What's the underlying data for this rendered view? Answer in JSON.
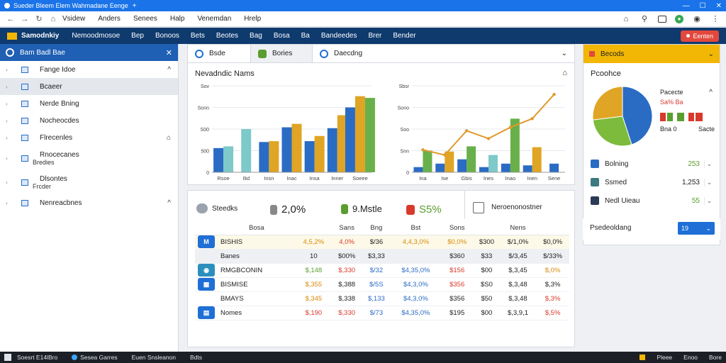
{
  "window": {
    "title": "Sueder Bleem Elem Wahmadane Eenge",
    "new_tab": "+"
  },
  "menubar": {
    "items": [
      "Vsidew",
      "Anders",
      "Senees",
      "Halp",
      "Venemdan",
      "Hrelp"
    ]
  },
  "toolbar": {
    "brand": "Samodnkiy",
    "items": [
      "Nemoodmosoe",
      "Bep",
      "Bonoos",
      "Bets",
      "Beotes",
      "Bag",
      "Bosa",
      "Ba",
      "Bandeedes",
      "Brer",
      "Bender"
    ],
    "action_label": "Eenten"
  },
  "sidebar": {
    "header": "Bam Badl Bae",
    "items": [
      {
        "label": "Fange Idoe",
        "sub": "",
        "right": "^"
      },
      {
        "label": "Bcaeer",
        "sub": "",
        "right": ""
      },
      {
        "label": "Nerde Bning",
        "sub": "",
        "right": ""
      },
      {
        "label": "Nocheocdes",
        "sub": "",
        "right": ""
      },
      {
        "label": "Flrecenles",
        "sub": "",
        "right": "⌂"
      },
      {
        "label": "Rnocecanes",
        "sub": "Bredies",
        "right": ""
      },
      {
        "label": "Dlsontes",
        "sub": "Frcder",
        "right": ""
      },
      {
        "label": "Nenreacbnes",
        "sub": "",
        "right": "^"
      }
    ]
  },
  "chart_panel": {
    "tabs": [
      {
        "label": "Bsde",
        "color": "#1f6fd6"
      },
      {
        "label": "Bories",
        "color": "#5a9e2f"
      },
      {
        "label": "Daecdng",
        "color": "#1f6fd6"
      }
    ],
    "title": "Nevadndic Nams"
  },
  "chart_data": [
    {
      "type": "bar",
      "title": "",
      "categories": [
        "Rsoe",
        "Ilid",
        "Insn",
        "Inac",
        "Insa",
        "Inner",
        "Soeee"
      ],
      "yticks": [
        "0",
        "500",
        "S00",
        "Sonn",
        "Sov"
      ],
      "ylim": [
        0,
        1000
      ],
      "series": [
        {
          "name": "",
          "color": "#2a6cc4",
          "values": [
            280,
            0,
            350,
            520,
            360,
            510,
            750
          ]
        },
        {
          "name": "",
          "color": "#7ec9c9",
          "values": [
            300,
            500,
            0,
            0,
            0,
            0,
            0
          ]
        },
        {
          "name": "",
          "color": "#e0a524",
          "values": [
            0,
            0,
            360,
            560,
            420,
            660,
            880
          ]
        },
        {
          "name": "",
          "color": "#69b04a",
          "values": [
            0,
            0,
            0,
            0,
            0,
            0,
            0
          ]
        }
      ],
      "last_bar_green": 860
    },
    {
      "type": "bar_line",
      "title": "",
      "categories": [
        "Ina",
        "Ise",
        "Gbis",
        "Ines",
        "Inao",
        "Inen",
        "Sene"
      ],
      "yticks": [
        "0",
        "Snn",
        "Soo",
        "Sono",
        "Sbsr"
      ],
      "ylim": [
        0,
        1000
      ],
      "bars": [
        {
          "color": "#2a6cc4",
          "values": [
            60,
            100,
            150,
            60,
            100,
            80,
            100
          ]
        },
        {
          "color": "#69b04a",
          "values": [
            250,
            0,
            300,
            0,
            620,
            0,
            0
          ]
        },
        {
          "color": "#e0a524",
          "values": [
            0,
            240,
            0,
            0,
            0,
            290,
            0
          ]
        },
        {
          "color": "#7ec9c9",
          "values": [
            0,
            0,
            0,
            200,
            0,
            0,
            0
          ]
        }
      ],
      "line": {
        "color": "#e09a2c",
        "values": [
          260,
          200,
          480,
          390,
          520,
          620,
          900
        ]
      }
    },
    {
      "type": "pie",
      "title": "Pcoohce",
      "slices": [
        {
          "label": "",
          "value": 45,
          "color": "#2a6cc4"
        },
        {
          "label": "",
          "value": 28,
          "color": "#7dbb3c"
        },
        {
          "label": "",
          "value": 27,
          "color": "#e0a524"
        }
      ]
    }
  ],
  "stats": {
    "items": [
      {
        "label": "Steedks",
        "value": "",
        "color": "#9aa3ad"
      },
      {
        "label": "",
        "value": "2,0%",
        "color": "#888"
      },
      {
        "label": "9.Mstle",
        "value": "",
        "color": "#5a9e2f"
      },
      {
        "label": "",
        "value": "S5%",
        "color": "#d9392c"
      }
    ],
    "right_label": "Neroenonostner"
  },
  "table": {
    "headers": [
      "",
      "Bosa",
      "",
      "Sans",
      "Bng",
      "Bst",
      "Sons",
      "",
      "Nens",
      ""
    ],
    "rows": [
      {
        "icon_color": "#1f6fd6",
        "icon": "M",
        "name": "BISHIS",
        "cells": [
          "4,5,2%",
          "4,0%",
          "$/36",
          "4,4,3,0%",
          "$0,0%",
          "$300",
          "$/1,0%",
          "$0,0%"
        ],
        "colors": [
          "c-orange",
          "c-red",
          "c-dark",
          "c-orange",
          "c-orange",
          "c-dark",
          "c-dark",
          "c-dark"
        ]
      },
      {
        "icon_color": "",
        "icon": "",
        "name": "Banes",
        "cells": [
          "10",
          "$00%",
          "$3,33",
          "",
          "$360",
          "$33",
          "$/3,45",
          "$/33%"
        ],
        "colors": [
          "c-dark",
          "c-dark",
          "c-dark",
          "c-dark",
          "c-dark",
          "c-dark",
          "c-dark",
          "c-dark"
        ]
      },
      {
        "icon_color": "#2a8fbd",
        "icon": "◉",
        "name": "RMGBCONIN",
        "cells": [
          "$,148",
          "$,330",
          "$/32",
          "$4,35,0%",
          "$156",
          "$00",
          "$,3,45",
          "$,0%"
        ],
        "colors": [
          "c-green",
          "c-red",
          "c-blue",
          "c-blue",
          "c-red",
          "c-dark",
          "c-dark",
          "c-orange"
        ]
      },
      {
        "icon_color": "#1f6fd6",
        "icon": "▦",
        "name": "BISMISE",
        "cells": [
          "$,355",
          "$,388",
          "$/5S",
          "$4,3,0%",
          "$356",
          "$S0",
          "$,3,48",
          "$,3%"
        ],
        "colors": [
          "c-orange",
          "c-dark",
          "c-blue",
          "c-blue",
          "c-red",
          "c-dark",
          "c-dark",
          "c-dark"
        ]
      },
      {
        "icon_color": "",
        "icon": "",
        "name": "BMAYS",
        "cells": [
          "$,345",
          "$,338",
          "$,133",
          "$4,3,0%",
          "$356",
          "$50",
          "$,3,48",
          "$,3%"
        ],
        "colors": [
          "c-orange",
          "c-dark",
          "c-blue",
          "c-blue",
          "c-dark",
          "c-dark",
          "c-dark",
          "c-red"
        ]
      },
      {
        "icon_color": "#1f6fd6",
        "icon": "▤",
        "name": "Nomes",
        "cells": [
          "$,190",
          "$,330",
          "$/73",
          "$4,35,0%",
          "$195",
          "$00",
          "$,3,9,1",
          "$,5%"
        ],
        "colors": [
          "c-red",
          "c-red",
          "c-blue",
          "c-blue",
          "c-dark",
          "c-dark",
          "c-dark",
          "c-red"
        ]
      }
    ]
  },
  "right_panel": {
    "header": "Becods",
    "legend": [
      "Pacecte",
      "Sa% Ba",
      "Bna 0",
      "Sacte"
    ],
    "rows": [
      {
        "label": "Bolning",
        "value": "253",
        "color": "#2a6cc4",
        "value_color": "#5a9e2f"
      },
      {
        "label": "Ssmed",
        "value": "1,253",
        "color": "#3c7a80",
        "value_color": "#222"
      },
      {
        "label": "Nedl Uieau",
        "value": "55",
        "color": "#2b3a55",
        "value_color": "#5a9e2f"
      }
    ]
  },
  "filter": {
    "label": "Psedeoldang",
    "selected": "19"
  },
  "taskbar": {
    "items": [
      "Soesrt E14lBro",
      "Sesea Garres",
      "Euen Snsleanon",
      "Bdts"
    ],
    "tray": [
      "Pleee",
      "Enoo",
      "Bore"
    ]
  }
}
